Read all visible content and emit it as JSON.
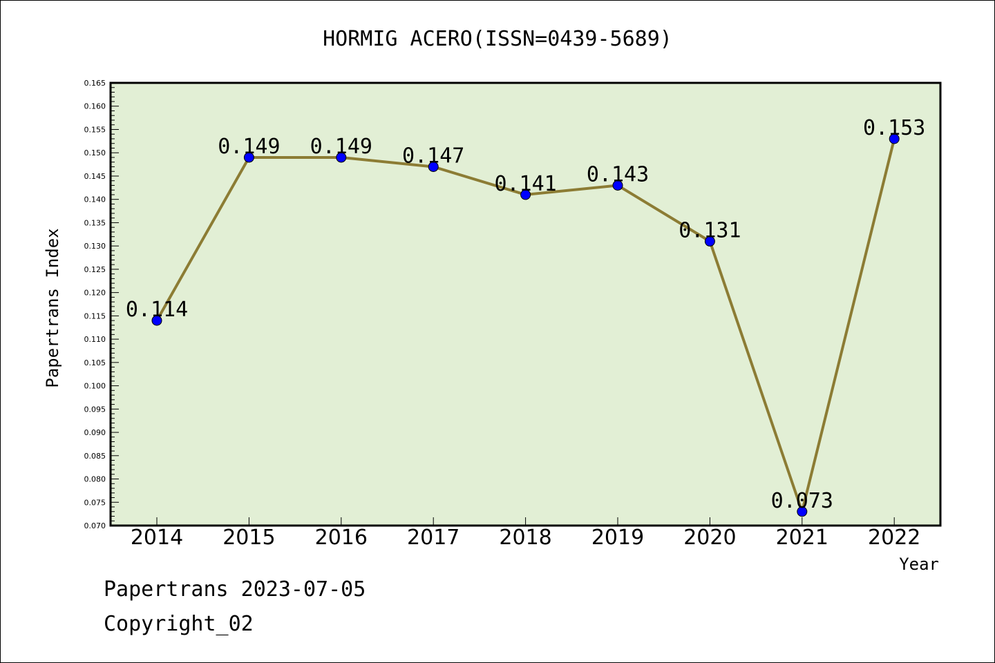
{
  "chart_data": {
    "type": "line",
    "title": "HORMIG ACERO(ISSN=0439-5689)",
    "xlabel": "Year",
    "ylabel": "Papertrans Index",
    "x": [
      "2014",
      "2015",
      "2016",
      "2017",
      "2018",
      "2019",
      "2020",
      "2021",
      "2022"
    ],
    "series": [
      {
        "values": [
          0.114,
          0.149,
          0.149,
          0.147,
          0.141,
          0.143,
          0.131,
          0.073,
          0.153
        ],
        "labels": [
          "0.114",
          "0.149",
          "0.149",
          "0.147",
          "0.141",
          "0.143",
          "0.131",
          "0.073",
          "0.153"
        ]
      }
    ],
    "ylim": [
      0.07,
      0.165
    ],
    "ytick_step": 0.005,
    "yminor_step": 0.001,
    "grid": false,
    "legend": "none",
    "colors": {
      "plot_background": "#e2efd5",
      "line": "#8c7c34",
      "marker": "#0000ff"
    }
  },
  "footer": {
    "line1": "Papertrans 2023-07-05",
    "line2": "Copyright_02"
  }
}
